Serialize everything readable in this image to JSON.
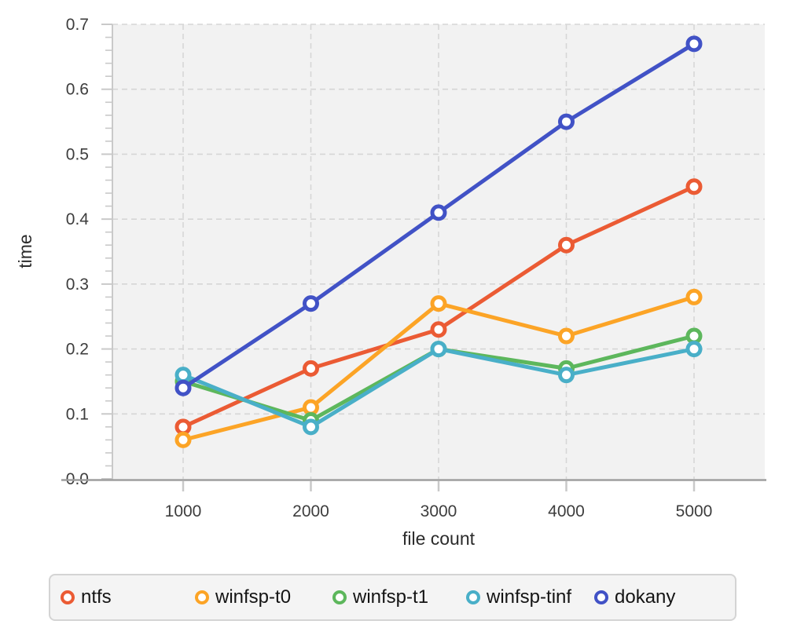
{
  "chart_data": {
    "type": "line",
    "title": "",
    "xlabel": "file count",
    "ylabel": "time",
    "x": [
      1000,
      2000,
      3000,
      4000,
      5000
    ],
    "xtick_labels": [
      "1000",
      "2000",
      "3000",
      "4000",
      "5000"
    ],
    "yticks": [
      0.0,
      0.1,
      0.2,
      0.3,
      0.4,
      0.5,
      0.6,
      0.7
    ],
    "ytick_labels": [
      "0.0",
      "0.1",
      "0.2",
      "0.3",
      "0.4",
      "0.5",
      "0.6",
      "0.7"
    ],
    "y_minor_tick_step": 0.02,
    "ylim": [
      0.0,
      0.7
    ],
    "xlim": [
      1000,
      5000
    ],
    "grid": "dashed",
    "legend_position": "bottom",
    "series": [
      {
        "name": "ntfs",
        "color": "#EB5B34",
        "values": [
          0.08,
          0.17,
          0.23,
          0.36,
          0.45
        ]
      },
      {
        "name": "winfsp-t0",
        "color": "#FCA426",
        "values": [
          0.06,
          0.11,
          0.27,
          0.22,
          0.28
        ]
      },
      {
        "name": "winfsp-t1",
        "color": "#5DB75C",
        "values": [
          0.15,
          0.09,
          0.2,
          0.17,
          0.22
        ]
      },
      {
        "name": "winfsp-tinf",
        "color": "#49AFC8",
        "values": [
          0.16,
          0.08,
          0.2,
          0.16,
          0.2
        ]
      },
      {
        "name": "dokany",
        "color": "#4152C6",
        "values": [
          0.14,
          0.27,
          0.41,
          0.55,
          0.67
        ]
      }
    ],
    "colors": {
      "plot_background": "#f2f2f2",
      "grid": "#d6d6d6",
      "y_axis_line": "#c9c9c9",
      "x_axis_line": "#9e9e9e",
      "tick_mark": "#c9c9c9",
      "tick_label": "#3d3d3d",
      "marker_fill": "#ffffff"
    }
  }
}
